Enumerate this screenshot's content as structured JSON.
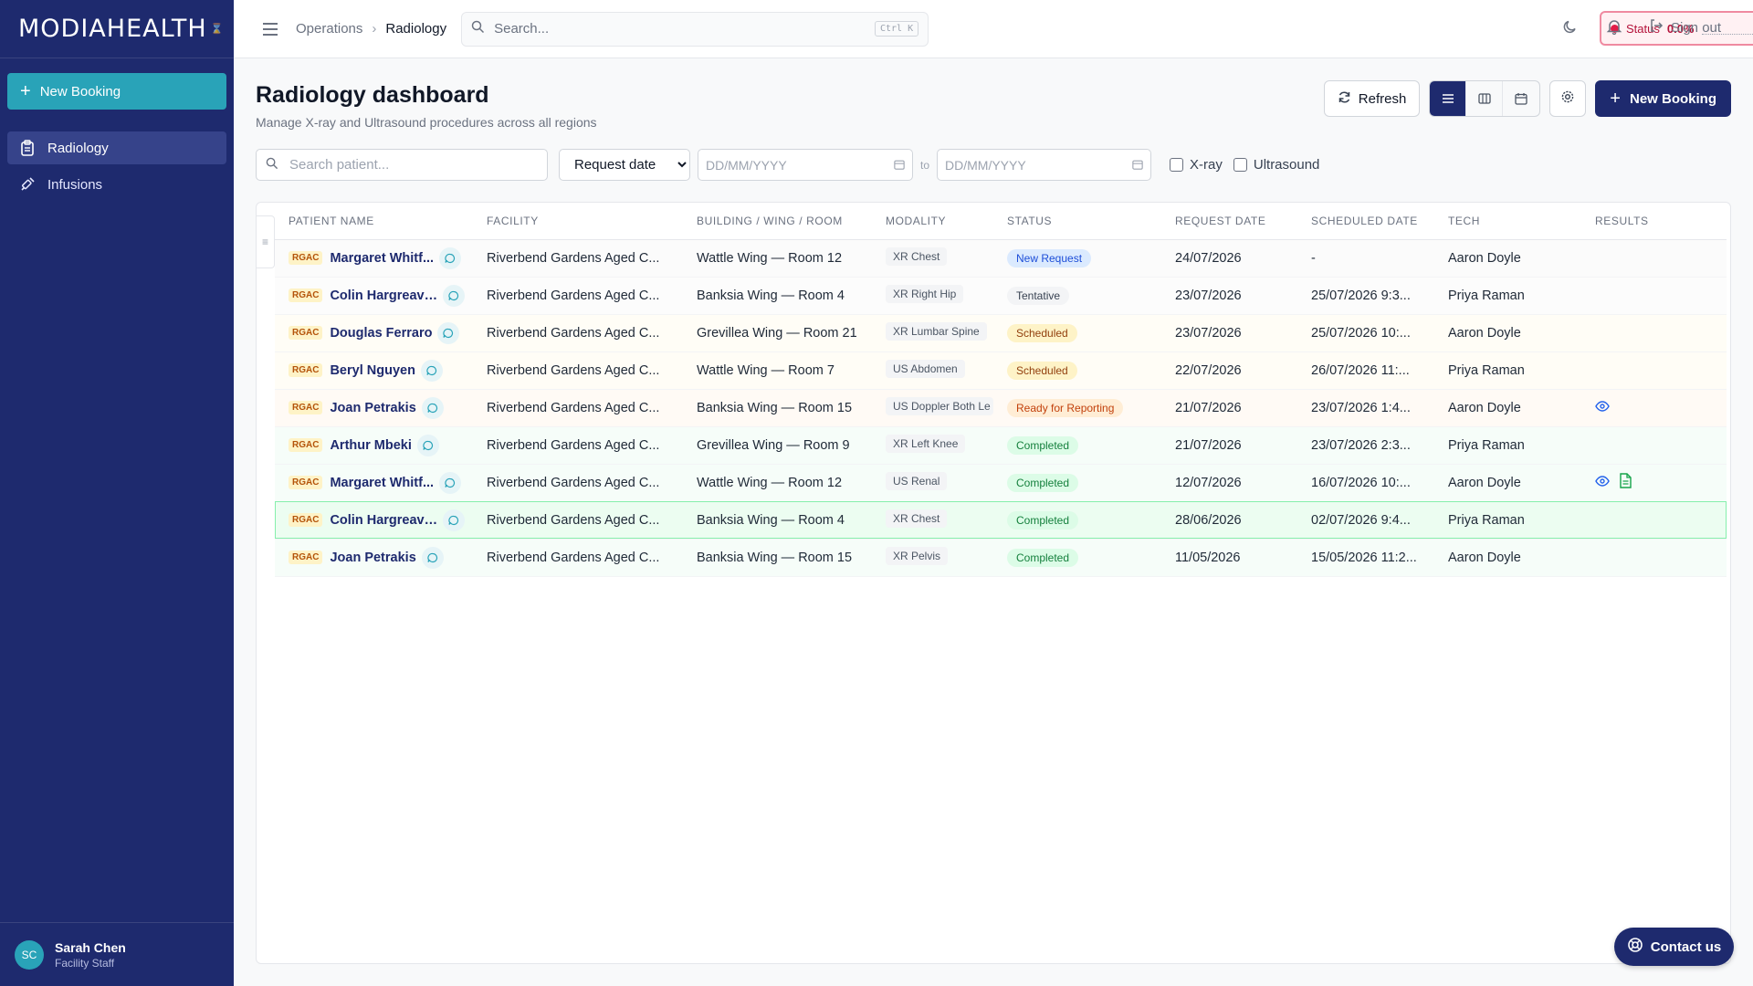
{
  "brand": {
    "name": "MODIAHEALTH",
    "mark": "⌛"
  },
  "sidebar": {
    "new_booking": "New Booking",
    "items": [
      {
        "label": "Radiology",
        "icon": "clipboard-icon",
        "active": true
      },
      {
        "label": "Infusions",
        "icon": "syringe-icon",
        "active": false
      }
    ],
    "user": {
      "initials": "SC",
      "name": "Sarah Chen",
      "role": "Facility Staff"
    }
  },
  "topbar": {
    "breadcrumb": [
      "Operations",
      "Radiology"
    ],
    "search_placeholder": "Search...",
    "search_shortcut": "Ctrl K",
    "status_label": "Status",
    "status_value": "0.0%",
    "sign_out": "Sign out"
  },
  "page": {
    "title": "Radiology dashboard",
    "subtitle": "Manage X-ray and Ultrasound procedures across all regions",
    "refresh": "Refresh",
    "new_booking": "New Booking",
    "view_modes": [
      "list-icon",
      "columns-icon",
      "calendar-icon"
    ],
    "active_view": 0
  },
  "filters": {
    "patient_placeholder": "Search patient...",
    "date_field": "Request date",
    "date_from_placeholder": "DD/MM/YYYY",
    "to": "to",
    "date_to_placeholder": "DD/MM/YYYY",
    "xray": "X-ray",
    "ultrasound": "Ultrasound"
  },
  "table": {
    "columns": [
      "PATIENT NAME",
      "FACILITY",
      "BUILDING / WING / ROOM",
      "MODALITY",
      "STATUS",
      "REQUEST DATE",
      "SCHEDULED DATE",
      "TECH",
      "RESULTS"
    ],
    "rows": [
      {
        "tag": "RGAC",
        "name": "Margaret Whitf...",
        "facility": "Riverbend Gardens Aged C...",
        "room": "Wattle Wing — Room 12",
        "modality": "XR Chest",
        "status": "New Request",
        "request": "24/07/2026",
        "scheduled": "-",
        "tech": "Aaron Doyle",
        "results": []
      },
      {
        "tag": "RGAC",
        "name": "Colin Hargreaves",
        "facility": "Riverbend Gardens Aged C...",
        "room": "Banksia Wing — Room 4",
        "modality": "XR Right Hip",
        "status": "Tentative",
        "request": "23/07/2026",
        "scheduled": "25/07/2026 9:3...",
        "tech": "Priya Raman",
        "results": []
      },
      {
        "tag": "RGAC",
        "name": "Douglas Ferraro",
        "facility": "Riverbend Gardens Aged C...",
        "room": "Grevillea Wing — Room 21",
        "modality": "XR Lumbar Spine",
        "status": "Scheduled",
        "request": "23/07/2026",
        "scheduled": "25/07/2026 10:...",
        "tech": "Aaron Doyle",
        "results": []
      },
      {
        "tag": "RGAC",
        "name": "Beryl Nguyen",
        "facility": "Riverbend Gardens Aged C...",
        "room": "Wattle Wing — Room 7",
        "modality": "US Abdomen",
        "status": "Scheduled",
        "request": "22/07/2026",
        "scheduled": "26/07/2026 11:...",
        "tech": "Priya Raman",
        "results": []
      },
      {
        "tag": "RGAC",
        "name": "Joan Petrakis",
        "facility": "Riverbend Gardens Aged C...",
        "room": "Banksia Wing — Room 15",
        "modality": "US Doppler Both Le",
        "status": "Ready for Reporting",
        "request": "21/07/2026",
        "scheduled": "23/07/2026 1:4...",
        "tech": "Aaron Doyle",
        "results": [
          "eye-icon"
        ]
      },
      {
        "tag": "RGAC",
        "name": "Arthur Mbeki",
        "facility": "Riverbend Gardens Aged C...",
        "room": "Grevillea Wing — Room 9",
        "modality": "XR Left Knee",
        "status": "Completed",
        "request": "21/07/2026",
        "scheduled": "23/07/2026 2:3...",
        "tech": "Priya Raman",
        "results": []
      },
      {
        "tag": "RGAC",
        "name": "Margaret Whitf...",
        "facility": "Riverbend Gardens Aged C...",
        "room": "Wattle Wing — Room 12",
        "modality": "US Renal",
        "status": "Completed",
        "request": "12/07/2026",
        "scheduled": "16/07/2026 10:...",
        "tech": "Aaron Doyle",
        "results": [
          "eye-icon",
          "document-icon"
        ]
      },
      {
        "tag": "RGAC",
        "name": "Colin Hargreaves",
        "facility": "Riverbend Gardens Aged C...",
        "room": "Banksia Wing — Room 4",
        "modality": "XR Chest",
        "status": "Completed",
        "request": "28/06/2026",
        "scheduled": "02/07/2026 9:4...",
        "tech": "Priya Raman",
        "results": []
      },
      {
        "tag": "RGAC",
        "name": "Joan Petrakis",
        "facility": "Riverbend Gardens Aged C...",
        "room": "Banksia Wing — Room 15",
        "modality": "XR Pelvis",
        "status": "Completed",
        "request": "11/05/2026",
        "scheduled": "15/05/2026 11:2...",
        "tech": "Aaron Doyle",
        "results": []
      }
    ]
  },
  "contact": "Contact us",
  "colors": {
    "sidebar": "#1e2a6e",
    "accent": "#29a3b8",
    "primary": "#1e2a6e",
    "status_alert": "#e11d48"
  }
}
